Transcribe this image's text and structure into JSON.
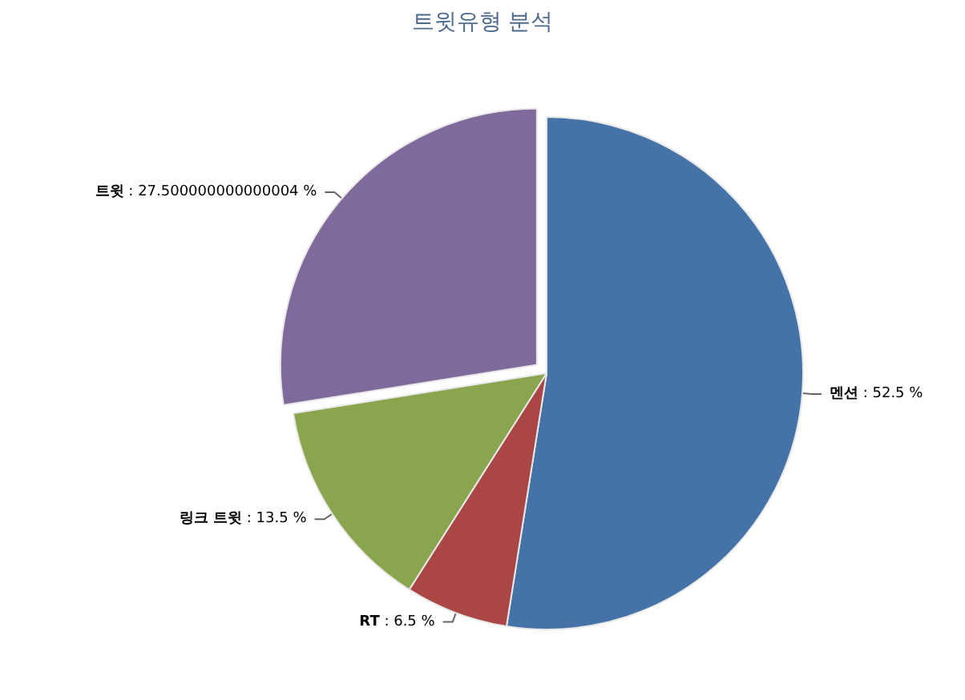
{
  "chart_data": {
    "type": "pie",
    "title": "트윗유형 분석",
    "categories": [
      "멘션",
      "RT",
      "링크 트윗",
      "트윗"
    ],
    "values": [
      52.5,
      6.5,
      13.5,
      27.500000000000004
    ],
    "colors": [
      "#4572a7",
      "#aa4643",
      "#89a54e",
      "#80699b"
    ],
    "value_labels": [
      ": 52.5 %",
      ": 6.5 %",
      ": 13.5 %",
      ": 27.500000000000004 %"
    ],
    "legend": false
  }
}
